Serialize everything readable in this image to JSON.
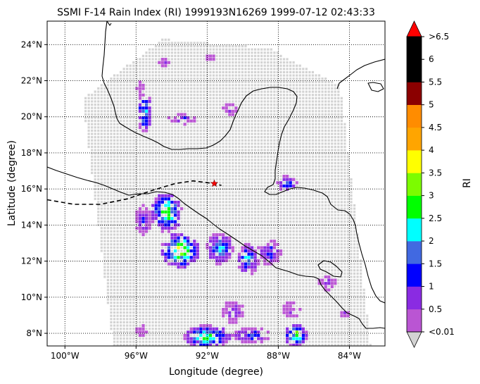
{
  "chart_data": {
    "type": "heatmap",
    "title": "SSMI F-14 Rain Index (RI) 1999193N16269 1999-07-12 02:43:33",
    "xlabel": "Longitude (degree)",
    "ylabel": "Latitude (degree)",
    "xlim": [
      -101,
      -82
    ],
    "ylim": [
      7.3,
      25.3
    ],
    "x_ticks": [
      -100,
      -96,
      -92,
      -88,
      -84
    ],
    "x_tick_labels": [
      "100°W",
      "96°W",
      "92°W",
      "88°W",
      "84°W"
    ],
    "y_ticks": [
      8,
      10,
      12,
      14,
      16,
      18,
      20,
      22,
      24
    ],
    "y_tick_labels": [
      "8°N",
      "10°N",
      "12°N",
      "14°N",
      "16°N",
      "18°N",
      "20°N",
      "22°N",
      "24°N"
    ],
    "grid": true,
    "colorbar": {
      "label": "RI",
      "boundaries": [
        0.01,
        0.5,
        1,
        1.5,
        2,
        2.5,
        3,
        3.5,
        4,
        4.5,
        5,
        5.5,
        6,
        6.5
      ],
      "tick_labels": [
        "<0.01",
        "0.5",
        "1",
        "1.5",
        "2",
        "2.5",
        "3",
        "3.5",
        "4",
        "4.5",
        "5",
        "5.5",
        "6",
        ">6.5"
      ],
      "colors": [
        "#ba55d3",
        "#8a2be2",
        "#0000ff",
        "#4169e1",
        "#00ffff",
        "#00ff00",
        "#7cfc00",
        "#ffff00",
        "#ffa500",
        "#ff8c00",
        "#8b0000",
        "#000000",
        "#000000"
      ],
      "under_color": "#d3d3d3",
      "over_color": "#ff0000"
    },
    "swath": {
      "no_rain_color": "#d3d3d3",
      "corners": [
        [
          -99.0,
          21.0
        ],
        [
          -94.5,
          24.3
        ],
        [
          -88.5,
          23.8
        ],
        [
          -84.5,
          21.7
        ],
        [
          -82.8,
          7.3
        ],
        [
          -97.3,
          7.3
        ]
      ]
    },
    "rain_clusters": [
      {
        "lon": -94.3,
        "lat": 14.7,
        "rlon": 0.8,
        "rlat": 1.0,
        "peak": 2.6
      },
      {
        "lon": -93.5,
        "lat": 12.6,
        "rlon": 1.0,
        "rlat": 0.9,
        "peak": 3.0
      },
      {
        "lon": -95.6,
        "lat": 14.3,
        "rlon": 0.4,
        "rlat": 0.8,
        "peak": 0.9
      },
      {
        "lon": -91.3,
        "lat": 12.7,
        "rlon": 0.7,
        "rlat": 0.8,
        "peak": 1.8
      },
      {
        "lon": -89.7,
        "lat": 12.1,
        "rlon": 0.6,
        "rlat": 0.8,
        "peak": 1.6
      },
      {
        "lon": -88.5,
        "lat": 12.5,
        "rlon": 0.6,
        "rlat": 0.7,
        "peak": 1.0
      },
      {
        "lon": -87.5,
        "lat": 16.3,
        "rlon": 0.5,
        "rlat": 0.4,
        "peak": 1.4
      },
      {
        "lon": -95.5,
        "lat": 20.2,
        "rlon": 0.4,
        "rlat": 1.0,
        "peak": 1.8
      },
      {
        "lon": -93.3,
        "lat": 19.9,
        "rlon": 0.8,
        "rlat": 0.3,
        "peak": 0.9
      },
      {
        "lon": -90.7,
        "lat": 20.4,
        "rlon": 0.4,
        "rlat": 0.3,
        "peak": 0.6
      },
      {
        "lon": -95.8,
        "lat": 21.6,
        "rlon": 0.2,
        "rlat": 0.4,
        "peak": 0.5
      },
      {
        "lon": -91.8,
        "lat": 23.3,
        "rlon": 0.3,
        "rlat": 0.2,
        "peak": 0.5
      },
      {
        "lon": -94.4,
        "lat": 23.0,
        "rlon": 0.3,
        "rlat": 0.2,
        "peak": 0.5
      },
      {
        "lon": -92.0,
        "lat": 7.8,
        "rlon": 1.2,
        "rlat": 0.6,
        "peak": 2.4
      },
      {
        "lon": -87.0,
        "lat": 7.9,
        "rlon": 0.6,
        "rlat": 0.6,
        "peak": 2.5
      },
      {
        "lon": -89.5,
        "lat": 7.9,
        "rlon": 1.0,
        "rlat": 0.4,
        "peak": 1.3
      },
      {
        "lon": -90.5,
        "lat": 9.2,
        "rlon": 0.6,
        "rlat": 0.6,
        "peak": 0.7
      },
      {
        "lon": -87.3,
        "lat": 9.3,
        "rlon": 0.5,
        "rlat": 0.4,
        "peak": 0.6
      },
      {
        "lon": -85.3,
        "lat": 10.8,
        "rlon": 0.5,
        "rlat": 0.4,
        "peak": 0.6
      },
      {
        "lon": -95.7,
        "lat": 8.2,
        "rlon": 0.3,
        "rlat": 0.3,
        "peak": 0.5
      },
      {
        "lon": -84.3,
        "lat": 9.1,
        "rlon": 0.3,
        "rlat": 0.2,
        "peak": 0.5
      }
    ],
    "track": {
      "points": [
        [
          -101,
          15.4
        ],
        [
          -99.5,
          15.15
        ],
        [
          -98,
          15.15
        ],
        [
          -96.5,
          15.45
        ],
        [
          -95,
          15.95
        ],
        [
          -93.8,
          16.3
        ],
        [
          -92.8,
          16.45
        ],
        [
          -91.6,
          16.3
        ],
        [
          -91.2,
          16.2
        ]
      ],
      "style": "dashed",
      "color": "#000000"
    },
    "storm_marker": {
      "lon": -91.6,
      "lat": 16.3,
      "symbol": "star",
      "color": "#ff0000"
    }
  }
}
